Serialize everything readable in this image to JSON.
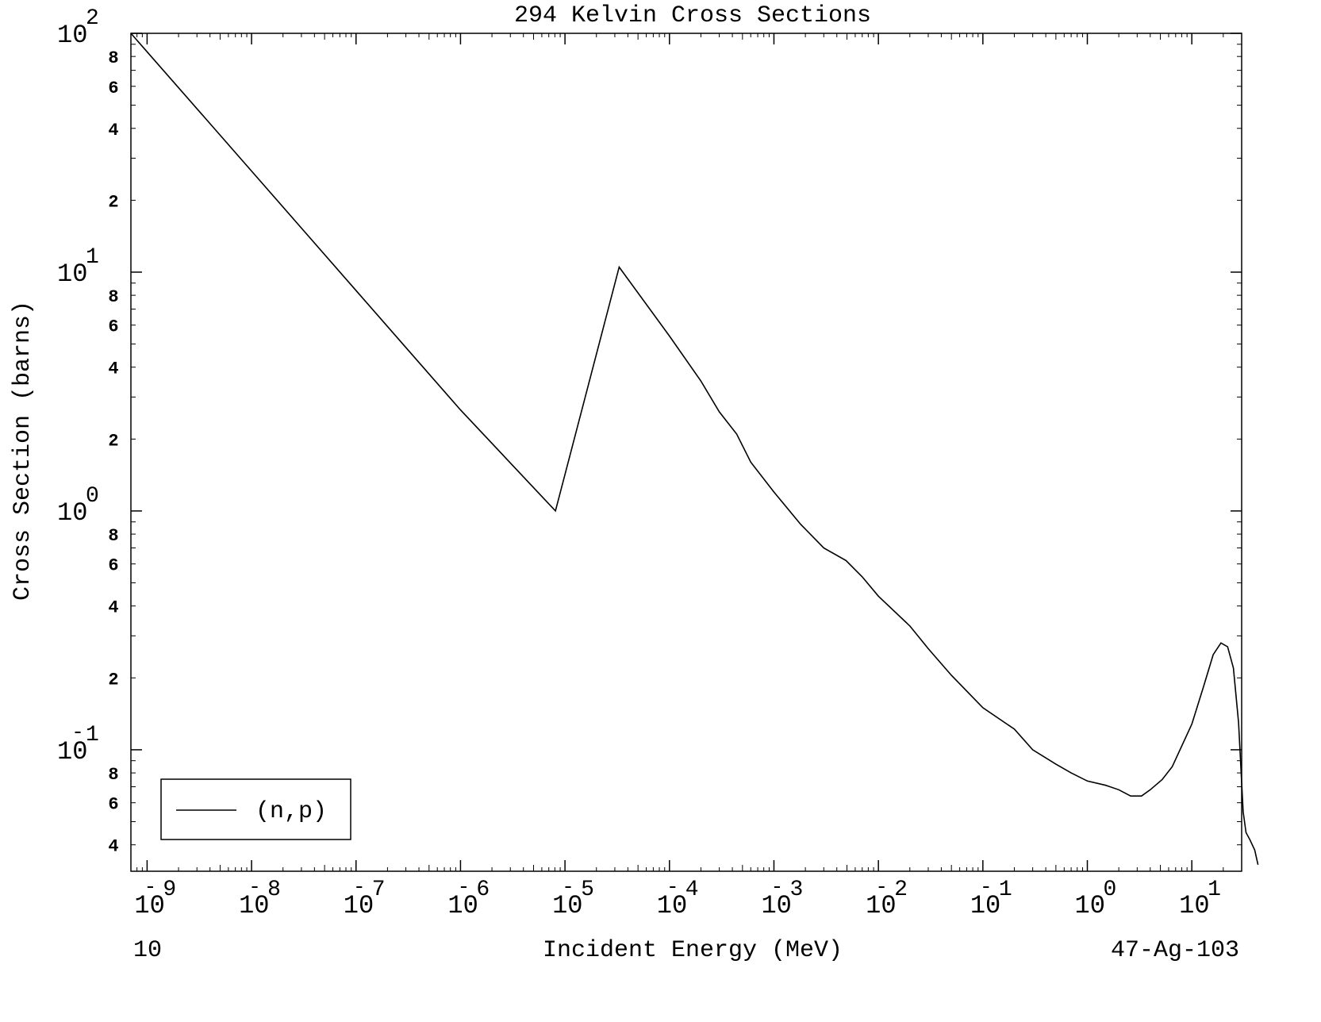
{
  "chart_data": {
    "type": "line",
    "title": "294 Kelvin Cross Sections",
    "xlabel": "Incident Energy (MeV)",
    "ylabel": "Cross Section (barns)",
    "x_scale": "log",
    "y_scale": "log",
    "xlim": [
      7e-10,
      30
    ],
    "ylim": [
      0.031,
      100
    ],
    "grid": false,
    "legend_position": "bottom-left",
    "x_major_ticks": [
      {
        "mantissa": "10",
        "exp": "-9",
        "value": 1e-09
      },
      {
        "mantissa": "10",
        "exp": "-8",
        "value": 1e-08
      },
      {
        "mantissa": "10",
        "exp": "-7",
        "value": 1e-07
      },
      {
        "mantissa": "10",
        "exp": "-6",
        "value": 1e-06
      },
      {
        "mantissa": "10",
        "exp": "-5",
        "value": 1e-05
      },
      {
        "mantissa": "10",
        "exp": "-4",
        "value": 0.0001
      },
      {
        "mantissa": "10",
        "exp": "-3",
        "value": 0.001
      },
      {
        "mantissa": "10",
        "exp": "-2",
        "value": 0.01
      },
      {
        "mantissa": "10",
        "exp": "-1",
        "value": 0.1
      },
      {
        "mantissa": "10",
        "exp": "0",
        "value": 1
      },
      {
        "mantissa": "10",
        "exp": "1",
        "value": 10
      }
    ],
    "y_major_ticks": [
      {
        "mantissa": "10",
        "exp": "2",
        "value": 100
      },
      {
        "mantissa": "10",
        "exp": "1",
        "value": 10
      },
      {
        "mantissa": "10",
        "exp": "0",
        "value": 1
      },
      {
        "mantissa": "10",
        "exp": "-1",
        "value": 0.1
      }
    ],
    "y_minor_labels": [
      {
        "label": "8",
        "value": 80
      },
      {
        "label": "6",
        "value": 60
      },
      {
        "label": "4",
        "value": 40
      },
      {
        "label": "2",
        "value": 20
      },
      {
        "label": "8",
        "value": 8
      },
      {
        "label": "6",
        "value": 6
      },
      {
        "label": "4",
        "value": 4
      },
      {
        "label": "2",
        "value": 2
      },
      {
        "label": "8",
        "value": 0.8
      },
      {
        "label": "6",
        "value": 0.6
      },
      {
        "label": "4",
        "value": 0.4
      },
      {
        "label": "2",
        "value": 0.2
      },
      {
        "label": "8",
        "value": 0.08
      },
      {
        "label": "6",
        "value": 0.06
      },
      {
        "label": "4",
        "value": 0.04
      }
    ],
    "series": [
      {
        "name": "(n,p)",
        "color": "#000000",
        "points": [
          [
            7e-10,
            100
          ],
          [
            1e-09,
            83.7
          ],
          [
            1e-08,
            26.5
          ],
          [
            1e-07,
            8.37
          ],
          [
            1e-06,
            2.65
          ],
          [
            8.1e-06,
            1.0
          ],
          [
            3.3e-05,
            10.5
          ],
          [
            0.0001,
            5.4
          ],
          [
            0.0002,
            3.5
          ],
          [
            0.0003,
            2.6
          ],
          [
            0.00044,
            2.1
          ],
          [
            0.0006,
            1.6
          ],
          [
            0.001,
            1.2
          ],
          [
            0.0018,
            0.88
          ],
          [
            0.003,
            0.7
          ],
          [
            0.0049,
            0.62
          ],
          [
            0.007,
            0.53
          ],
          [
            0.01,
            0.44
          ],
          [
            0.02,
            0.33
          ],
          [
            0.03,
            0.265
          ],
          [
            0.05,
            0.205
          ],
          [
            0.1,
            0.15
          ],
          [
            0.2,
            0.122
          ],
          [
            0.3,
            0.1
          ],
          [
            0.5,
            0.087
          ],
          [
            0.7,
            0.08
          ],
          [
            1.0,
            0.074
          ],
          [
            1.5,
            0.071
          ],
          [
            2.0,
            0.068
          ],
          [
            2.6,
            0.064
          ],
          [
            3.3,
            0.064
          ],
          [
            4.0,
            0.068
          ],
          [
            5.2,
            0.075
          ],
          [
            6.5,
            0.085
          ],
          [
            10.0,
            0.128
          ],
          [
            13.0,
            0.185
          ],
          [
            16.0,
            0.25
          ],
          [
            19.0,
            0.28
          ],
          [
            22.0,
            0.27
          ],
          [
            25.0,
            0.22
          ],
          [
            28.0,
            0.13
          ],
          [
            31.0,
            0.055
          ],
          [
            33.0,
            0.045
          ],
          [
            36.0,
            0.042
          ],
          [
            40.0,
            0.038
          ],
          [
            43.0,
            0.033
          ]
        ]
      }
    ]
  },
  "footer": {
    "left_text": "10",
    "right_text": "47-Ag-103"
  }
}
